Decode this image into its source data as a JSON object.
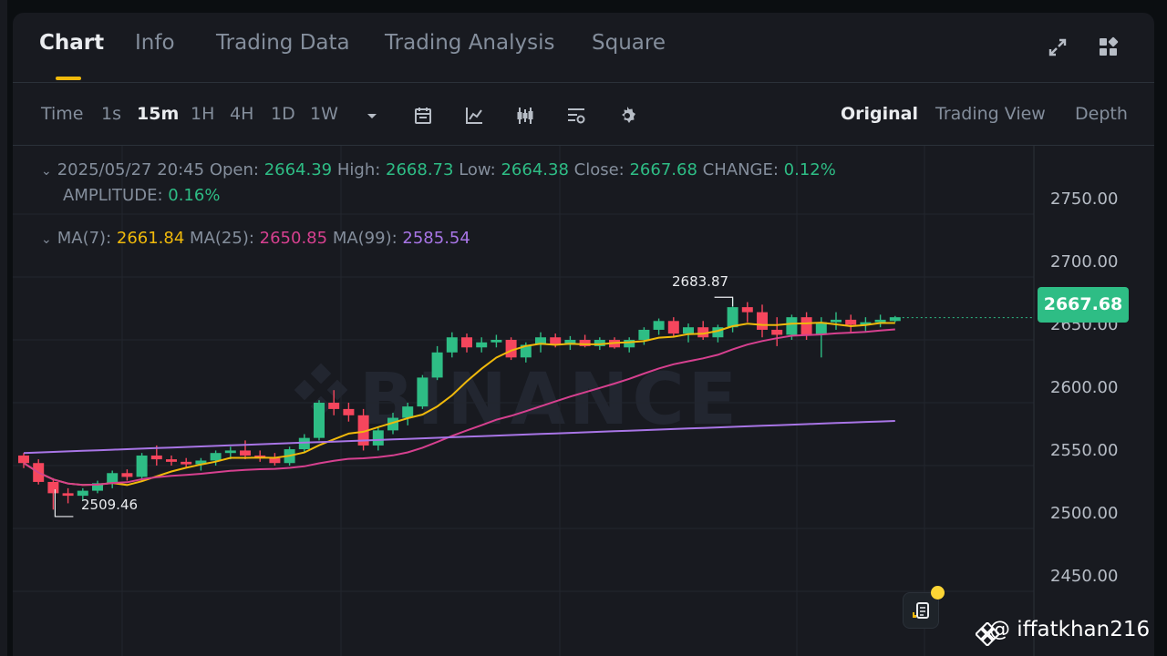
{
  "tabs": [
    {
      "label": "Chart",
      "active": true
    },
    {
      "label": "Info"
    },
    {
      "label": "Trading Data"
    },
    {
      "label": "Trading Analysis"
    },
    {
      "label": "Square"
    }
  ],
  "header_icons": [
    "fullscreen-icon",
    "layout-grid-icon"
  ],
  "toolbar": {
    "time_label": "Time",
    "intervals": [
      "1s",
      "15m",
      "1H",
      "4H",
      "1D",
      "1W"
    ],
    "active_interval": "15m",
    "tool_icons": [
      "calendar-icon",
      "indicator-icon",
      "candle-type-icon",
      "template-icon",
      "settings-icon"
    ],
    "views": [
      "Original",
      "Trading View",
      "Depth"
    ],
    "active_view": "Original"
  },
  "ohlc": {
    "datetime": "2025/05/27 20:45",
    "open_label": "Open:",
    "open": "2664.39",
    "high_label": "High:",
    "high": "2668.73",
    "low_label": "Low:",
    "low": "2664.38",
    "close_label": "Close:",
    "close": "2667.68",
    "change_label": "CHANGE:",
    "change": "0.12%",
    "amplitude_label": "AMPLITUDE:",
    "amplitude": "0.16%"
  },
  "ma": {
    "ma7_label": "MA(7):",
    "ma7": "2661.84",
    "ma25_label": "MA(25):",
    "ma25": "2650.85",
    "ma99_label": "MA(99):",
    "ma99": "2585.54"
  },
  "colors": {
    "up": "#2ebd85",
    "down": "#f6465d",
    "ma7": "#f0b90b",
    "ma25": "#d6408f",
    "ma99": "#a875e6",
    "accent": "#f0b90b"
  },
  "chart_data": {
    "type": "candlestick",
    "y_ticks": [
      "2750.00",
      "2700.00",
      "2650.00",
      "2600.00",
      "2550.00",
      "2500.00",
      "2450.00"
    ],
    "ylim": [
      2440,
      2775
    ],
    "current_price": "2667.68",
    "high_marker": "2683.87",
    "low_marker": "2509.46",
    "candles": [
      [
        2558,
        2560,
        2548,
        2552
      ],
      [
        2552,
        2555,
        2535,
        2537
      ],
      [
        2537,
        2540,
        2515,
        2528
      ],
      [
        2528,
        2532,
        2520,
        2526
      ],
      [
        2526,
        2532,
        2522,
        2530
      ],
      [
        2530,
        2538,
        2528,
        2536
      ],
      [
        2536,
        2546,
        2532,
        2544
      ],
      [
        2544,
        2547,
        2538,
        2541
      ],
      [
        2541,
        2560,
        2538,
        2558
      ],
      [
        2558,
        2566,
        2550,
        2555
      ],
      [
        2555,
        2558,
        2550,
        2553
      ],
      [
        2553,
        2556,
        2548,
        2551
      ],
      [
        2551,
        2556,
        2546,
        2554
      ],
      [
        2554,
        2562,
        2550,
        2560
      ],
      [
        2560,
        2565,
        2555,
        2562
      ],
      [
        2562,
        2570,
        2555,
        2558
      ],
      [
        2558,
        2562,
        2553,
        2556
      ],
      [
        2556,
        2560,
        2550,
        2552
      ],
      [
        2552,
        2565,
        2550,
        2563
      ],
      [
        2563,
        2575,
        2560,
        2572
      ],
      [
        2572,
        2602,
        2570,
        2600
      ],
      [
        2600,
        2610,
        2590,
        2595
      ],
      [
        2595,
        2600,
        2585,
        2590
      ],
      [
        2590,
        2595,
        2562,
        2566
      ],
      [
        2566,
        2580,
        2562,
        2578
      ],
      [
        2578,
        2592,
        2575,
        2588
      ],
      [
        2588,
        2600,
        2582,
        2597
      ],
      [
        2597,
        2622,
        2595,
        2620
      ],
      [
        2620,
        2645,
        2618,
        2640
      ],
      [
        2640,
        2656,
        2636,
        2652
      ],
      [
        2652,
        2655,
        2640,
        2644
      ],
      [
        2644,
        2652,
        2640,
        2648
      ],
      [
        2648,
        2654,
        2644,
        2650
      ],
      [
        2650,
        2652,
        2634,
        2636
      ],
      [
        2636,
        2648,
        2632,
        2646
      ],
      [
        2646,
        2656,
        2640,
        2652
      ],
      [
        2652,
        2655,
        2644,
        2646
      ],
      [
        2646,
        2653,
        2642,
        2650
      ],
      [
        2650,
        2654,
        2644,
        2645
      ],
      [
        2645,
        2652,
        2642,
        2650
      ],
      [
        2650,
        2652,
        2643,
        2644
      ],
      [
        2644,
        2652,
        2640,
        2650
      ],
      [
        2650,
        2660,
        2646,
        2658
      ],
      [
        2658,
        2667,
        2654,
        2665
      ],
      [
        2665,
        2668,
        2652,
        2655
      ],
      [
        2655,
        2663,
        2648,
        2660
      ],
      [
        2660,
        2665,
        2650,
        2652
      ],
      [
        2652,
        2662,
        2648,
        2660
      ],
      [
        2660,
        2683,
        2656,
        2676
      ],
      [
        2676,
        2680,
        2664,
        2672
      ],
      [
        2672,
        2678,
        2652,
        2658
      ],
      [
        2658,
        2668,
        2645,
        2654
      ],
      [
        2654,
        2670,
        2650,
        2668
      ],
      [
        2668,
        2672,
        2650,
        2654
      ],
      [
        2654,
        2668,
        2636,
        2664
      ],
      [
        2664,
        2672,
        2658,
        2666
      ],
      [
        2666,
        2670,
        2656,
        2662
      ],
      [
        2662,
        2668,
        2656,
        2664
      ],
      [
        2664,
        2670,
        2660,
        2666
      ],
      [
        2665,
        2669,
        2664,
        2668
      ]
    ]
  },
  "watermark": "BINANCE",
  "handle": "@ iffatkhan216"
}
